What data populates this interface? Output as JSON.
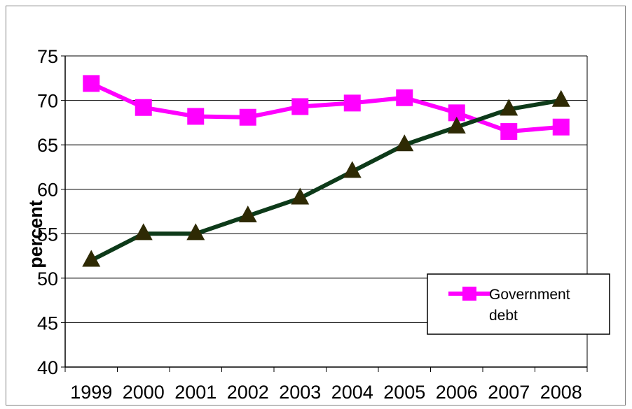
{
  "chart_data": {
    "type": "line",
    "categories": [
      "1999",
      "2000",
      "2001",
      "2002",
      "2003",
      "2004",
      "2005",
      "2006",
      "2007",
      "2008"
    ],
    "ylabel": "percent",
    "ylim": [
      40,
      75
    ],
    "yticks": [
      40,
      45,
      50,
      55,
      60,
      65,
      70,
      75
    ],
    "grid": true,
    "legend_position": "bottom-right",
    "series": [
      {
        "name": "Government debt",
        "marker": "square",
        "color": "#ff00ff",
        "values": [
          71.9,
          69.2,
          68.2,
          68.1,
          69.3,
          69.7,
          70.3,
          68.6,
          66.5,
          67.0
        ]
      },
      {
        "marker": "triangle",
        "color": "#0d3a19",
        "marker_color": "#2e2a04",
        "values": [
          52,
          55,
          55,
          57,
          59,
          62,
          65,
          67,
          69,
          70
        ]
      }
    ]
  },
  "legend": {
    "label_line1": "Government",
    "label_line2": "debt"
  }
}
